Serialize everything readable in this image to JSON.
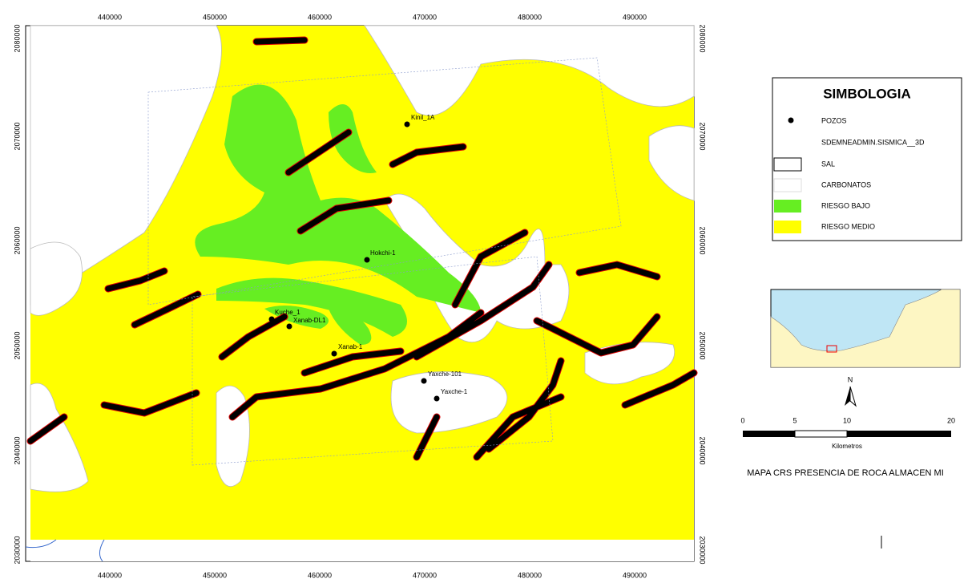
{
  "map": {
    "x_labels": [
      "440000",
      "450000",
      "460000",
      "470000",
      "480000",
      "490000"
    ],
    "y_labels": [
      "2080000",
      "2070000",
      "2060000",
      "2050000",
      "2040000",
      "2030000"
    ],
    "wells": [
      "Kinil_1A",
      "Hokchi-1",
      "Kuche_1",
      "Xanab-DL1",
      "Xanab-1",
      "Yaxche-101",
      "Yaxche-1"
    ]
  },
  "legend": {
    "title": "SIMBOLOGIA",
    "items": [
      "POZOS",
      "SDEMNEADMIN.SISMICA__3D",
      "SAL",
      "CARBONATOS",
      "RIESGO BAJO",
      "RIESGO MEDIO"
    ]
  },
  "inset": {
    "north": "N",
    "scale_ticks": [
      "0",
      "5",
      "10",
      "20"
    ],
    "scale_unit": "Kilometros"
  },
  "caption": "MAPA CRS PRESENCIA DE ROCA ALMACEN MI"
}
